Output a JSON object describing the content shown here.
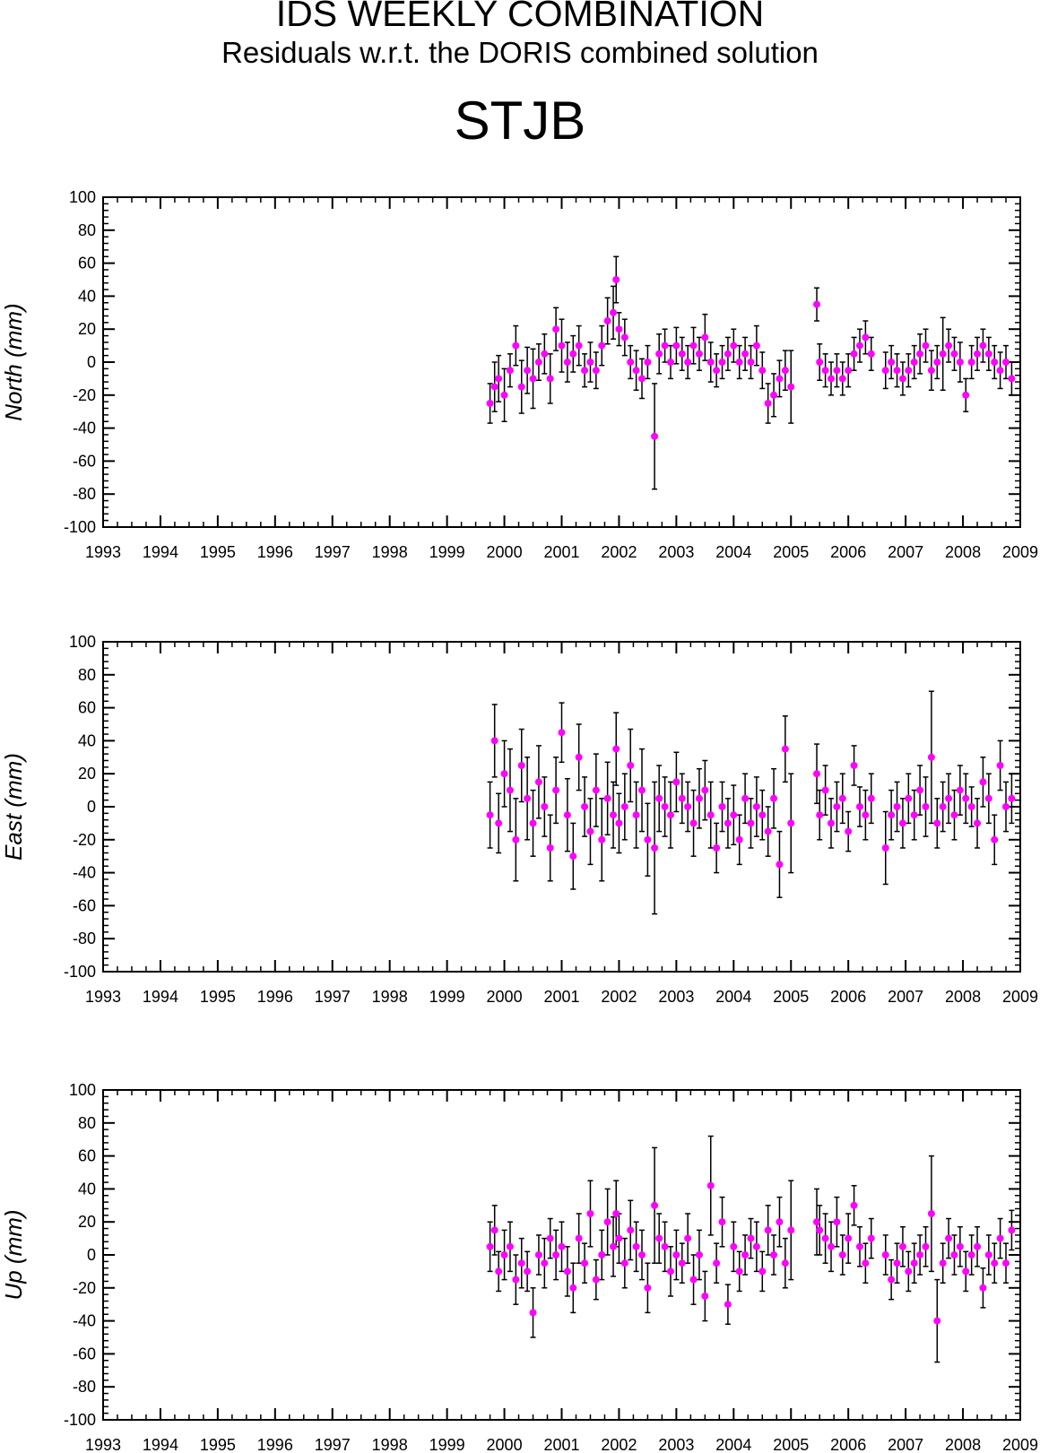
{
  "title": "IDS WEEKLY COMBINATION",
  "subtitle": "Residuals w.r.t. the DORIS combined solution",
  "station": "STJB",
  "chart_data": [
    {
      "type": "scatter",
      "component": "north",
      "ylabel": "North (mm)",
      "xlim": [
        1993,
        2009
      ],
      "ylim": [
        -100,
        100
      ],
      "x_ticks": [
        "1993",
        "1994",
        "1995",
        "1996",
        "1997",
        "1998",
        "1999",
        "2000",
        "2001",
        "2002",
        "2003",
        "2004",
        "2005",
        "2006",
        "2007",
        "2008",
        "2009"
      ],
      "y_ticks": [
        "100",
        "80",
        "60",
        "40",
        "20",
        "0",
        "-20",
        "-40",
        "-60",
        "-80",
        "-100"
      ],
      "marker_color": "#ff00ff",
      "errorbar_color": "#000000",
      "series": [
        {
          "x": [
            1999.75,
            1999.83,
            1999.9,
            2000.0,
            2000.1,
            2000.2,
            2000.3,
            2000.4,
            2000.5,
            2000.6,
            2000.7,
            2000.8,
            2000.9,
            2001.0,
            2001.1,
            2001.2,
            2001.3,
            2001.4,
            2001.5,
            2001.6,
            2001.7,
            2001.8,
            2001.9,
            2001.95,
            2002.0,
            2002.1,
            2002.2,
            2002.3,
            2002.4,
            2002.5,
            2002.62,
            2002.7,
            2002.8,
            2002.9,
            2003.0,
            2003.1,
            2003.2,
            2003.3,
            2003.4,
            2003.5,
            2003.6,
            2003.7,
            2003.8,
            2003.9,
            2004.0,
            2004.1,
            2004.2,
            2004.3,
            2004.4,
            2004.5,
            2004.6,
            2004.7,
            2004.8,
            2004.9,
            2005.0,
            2005.45,
            2005.5,
            2005.6,
            2005.7,
            2005.8,
            2005.9,
            2006.0,
            2006.1,
            2006.2,
            2006.3,
            2006.4,
            2006.65,
            2006.75,
            2006.85,
            2006.95,
            2007.05,
            2007.15,
            2007.25,
            2007.35,
            2007.45,
            2007.55,
            2007.65,
            2007.75,
            2007.85,
            2007.95,
            2008.05,
            2008.15,
            2008.25,
            2008.35,
            2008.45,
            2008.55,
            2008.65,
            2008.75,
            2008.85
          ],
          "y": [
            -25,
            -15,
            -10,
            -20,
            -5,
            10,
            -15,
            -5,
            -10,
            0,
            5,
            -10,
            20,
            10,
            0,
            5,
            10,
            -5,
            0,
            -5,
            10,
            25,
            30,
            50,
            20,
            15,
            0,
            -5,
            -10,
            0,
            -45,
            5,
            10,
            0,
            10,
            5,
            0,
            10,
            5,
            15,
            0,
            -5,
            0,
            5,
            10,
            0,
            5,
            0,
            10,
            -5,
            -25,
            -20,
            -10,
            -5,
            -15,
            35,
            0,
            -5,
            -10,
            -5,
            -10,
            -5,
            5,
            10,
            15,
            5,
            -5,
            0,
            -5,
            -10,
            -5,
            0,
            5,
            10,
            -5,
            0,
            5,
            10,
            5,
            0,
            -20,
            0,
            5,
            10,
            5,
            0,
            -5,
            0,
            -10
          ],
          "err": [
            12,
            15,
            14,
            16,
            10,
            12,
            16,
            14,
            18,
            11,
            12,
            15,
            13,
            16,
            12,
            11,
            12,
            10,
            12,
            11,
            12,
            14,
            16,
            14,
            10,
            11,
            10,
            12,
            12,
            10,
            32,
            12,
            10,
            10,
            11,
            10,
            10,
            11,
            10,
            14,
            12,
            10,
            10,
            10,
            10,
            10,
            10,
            10,
            12,
            11,
            12,
            13,
            11,
            12,
            22,
            10,
            11,
            10,
            10,
            10,
            10,
            10,
            10,
            10,
            10,
            10,
            11,
            10,
            10,
            10,
            10,
            10,
            12,
            10,
            12,
            10,
            22,
            10,
            10,
            12,
            10,
            10,
            10,
            10,
            10,
            10,
            11,
            10,
            10
          ]
        }
      ]
    },
    {
      "type": "scatter",
      "component": "east",
      "ylabel": "East (mm)",
      "xlim": [
        1993,
        2009
      ],
      "ylim": [
        -100,
        100
      ],
      "x_ticks": [
        "1993",
        "1994",
        "1995",
        "1996",
        "1997",
        "1998",
        "1999",
        "2000",
        "2001",
        "2002",
        "2003",
        "2004",
        "2005",
        "2006",
        "2007",
        "2008",
        "2009"
      ],
      "y_ticks": [
        "100",
        "80",
        "60",
        "40",
        "20",
        "0",
        "-20",
        "-40",
        "-60",
        "-80",
        "-100"
      ],
      "marker_color": "#ff00ff",
      "errorbar_color": "#000000",
      "series": [
        {
          "x": [
            1999.75,
            1999.83,
            1999.9,
            2000.0,
            2000.1,
            2000.2,
            2000.3,
            2000.4,
            2000.5,
            2000.6,
            2000.7,
            2000.8,
            2000.9,
            2001.0,
            2001.1,
            2001.2,
            2001.3,
            2001.4,
            2001.5,
            2001.6,
            2001.7,
            2001.8,
            2001.9,
            2001.95,
            2002.0,
            2002.1,
            2002.2,
            2002.3,
            2002.4,
            2002.5,
            2002.62,
            2002.7,
            2002.8,
            2002.9,
            2003.0,
            2003.1,
            2003.2,
            2003.3,
            2003.4,
            2003.5,
            2003.6,
            2003.7,
            2003.8,
            2003.9,
            2004.0,
            2004.1,
            2004.2,
            2004.3,
            2004.4,
            2004.5,
            2004.6,
            2004.7,
            2004.8,
            2004.9,
            2005.0,
            2005.45,
            2005.5,
            2005.6,
            2005.7,
            2005.8,
            2005.9,
            2006.0,
            2006.1,
            2006.2,
            2006.3,
            2006.4,
            2006.65,
            2006.75,
            2006.85,
            2006.95,
            2007.05,
            2007.15,
            2007.25,
            2007.35,
            2007.45,
            2007.55,
            2007.65,
            2007.75,
            2007.85,
            2007.95,
            2008.05,
            2008.15,
            2008.25,
            2008.35,
            2008.45,
            2008.55,
            2008.65,
            2008.75,
            2008.85
          ],
          "y": [
            -5,
            40,
            -10,
            20,
            10,
            -20,
            25,
            5,
            -10,
            15,
            0,
            -25,
            10,
            45,
            -5,
            -30,
            30,
            0,
            -15,
            10,
            -20,
            5,
            -5,
            35,
            -10,
            0,
            25,
            -5,
            10,
            -20,
            -25,
            5,
            0,
            -5,
            15,
            5,
            0,
            -10,
            5,
            10,
            -5,
            -25,
            0,
            -10,
            -5,
            -20,
            5,
            -10,
            0,
            -5,
            -15,
            5,
            -35,
            35,
            -10,
            20,
            -5,
            10,
            -10,
            0,
            5,
            -15,
            25,
            0,
            -5,
            5,
            -25,
            -5,
            0,
            -10,
            5,
            -5,
            10,
            0,
            30,
            -10,
            0,
            5,
            -5,
            10,
            5,
            0,
            -10,
            15,
            5,
            -20,
            25,
            0,
            5
          ],
          "err": [
            20,
            22,
            18,
            20,
            25,
            25,
            22,
            25,
            20,
            22,
            18,
            20,
            20,
            18,
            22,
            20,
            20,
            18,
            20,
            22,
            25,
            22,
            20,
            22,
            18,
            20,
            22,
            20,
            25,
            22,
            40,
            20,
            18,
            20,
            18,
            15,
            15,
            20,
            18,
            18,
            20,
            15,
            15,
            15,
            18,
            15,
            15,
            15,
            18,
            15,
            15,
            18,
            20,
            20,
            30,
            18,
            15,
            15,
            15,
            15,
            15,
            12,
            12,
            12,
            15,
            15,
            22,
            15,
            15,
            15,
            15,
            15,
            15,
            18,
            40,
            15,
            15,
            15,
            15,
            15,
            15,
            12,
            15,
            15,
            15,
            15,
            15,
            15,
            15
          ]
        }
      ]
    },
    {
      "type": "scatter",
      "component": "up",
      "ylabel": "Up (mm)",
      "xlim": [
        1993,
        2009
      ],
      "ylim": [
        -100,
        100
      ],
      "x_ticks": [
        "1993",
        "1994",
        "1995",
        "1996",
        "1997",
        "1998",
        "1999",
        "2000",
        "2001",
        "2002",
        "2003",
        "2004",
        "2005",
        "2006",
        "2007",
        "2008",
        "2009"
      ],
      "y_ticks": [
        "100",
        "80",
        "60",
        "40",
        "20",
        "0",
        "-20",
        "-40",
        "-60",
        "-80",
        "-100"
      ],
      "marker_color": "#ff00ff",
      "errorbar_color": "#000000",
      "series": [
        {
          "x": [
            1999.75,
            1999.83,
            1999.9,
            2000.0,
            2000.1,
            2000.2,
            2000.3,
            2000.4,
            2000.5,
            2000.6,
            2000.7,
            2000.8,
            2000.9,
            2001.0,
            2001.1,
            2001.2,
            2001.3,
            2001.4,
            2001.5,
            2001.6,
            2001.7,
            2001.8,
            2001.9,
            2001.95,
            2002.0,
            2002.1,
            2002.2,
            2002.3,
            2002.4,
            2002.5,
            2002.62,
            2002.7,
            2002.8,
            2002.9,
            2003.0,
            2003.1,
            2003.2,
            2003.3,
            2003.4,
            2003.5,
            2003.6,
            2003.7,
            2003.8,
            2003.9,
            2004.0,
            2004.1,
            2004.2,
            2004.3,
            2004.4,
            2004.5,
            2004.6,
            2004.7,
            2004.8,
            2004.9,
            2005.0,
            2005.45,
            2005.5,
            2005.6,
            2005.7,
            2005.8,
            2005.9,
            2006.0,
            2006.1,
            2006.2,
            2006.3,
            2006.4,
            2006.65,
            2006.75,
            2006.85,
            2006.95,
            2007.05,
            2007.15,
            2007.25,
            2007.35,
            2007.45,
            2007.55,
            2007.65,
            2007.75,
            2007.85,
            2007.95,
            2008.05,
            2008.15,
            2008.25,
            2008.35,
            2008.45,
            2008.55,
            2008.65,
            2008.75,
            2008.85
          ],
          "y": [
            5,
            15,
            -10,
            0,
            5,
            -15,
            -5,
            -10,
            -35,
            0,
            -5,
            10,
            0,
            5,
            -10,
            -20,
            10,
            -5,
            25,
            -15,
            0,
            20,
            5,
            25,
            10,
            -5,
            15,
            5,
            0,
            -20,
            30,
            10,
            5,
            -10,
            0,
            -5,
            10,
            -15,
            0,
            -25,
            42,
            -5,
            20,
            -30,
            5,
            -10,
            0,
            10,
            5,
            -10,
            15,
            0,
            20,
            -5,
            15,
            20,
            15,
            10,
            5,
            20,
            0,
            10,
            30,
            5,
            -5,
            10,
            0,
            -15,
            -5,
            5,
            -10,
            -5,
            0,
            5,
            25,
            -40,
            -5,
            10,
            0,
            5,
            -10,
            0,
            5,
            -20,
            0,
            -5,
            10,
            -5,
            15
          ],
          "err": [
            15,
            15,
            12,
            15,
            15,
            15,
            15,
            12,
            15,
            12,
            15,
            12,
            15,
            15,
            15,
            15,
            15,
            12,
            20,
            12,
            15,
            20,
            18,
            20,
            15,
            15,
            18,
            15,
            15,
            15,
            35,
            15,
            15,
            15,
            15,
            12,
            15,
            15,
            15,
            15,
            30,
            12,
            15,
            12,
            15,
            12,
            12,
            12,
            15,
            12,
            15,
            12,
            15,
            15,
            30,
            20,
            15,
            15,
            15,
            15,
            12,
            15,
            12,
            12,
            12,
            12,
            12,
            12,
            12,
            12,
            12,
            12,
            12,
            12,
            35,
            25,
            12,
            12,
            12,
            12,
            12,
            12,
            12,
            12,
            12,
            12,
            12,
            12,
            12
          ]
        }
      ]
    }
  ]
}
